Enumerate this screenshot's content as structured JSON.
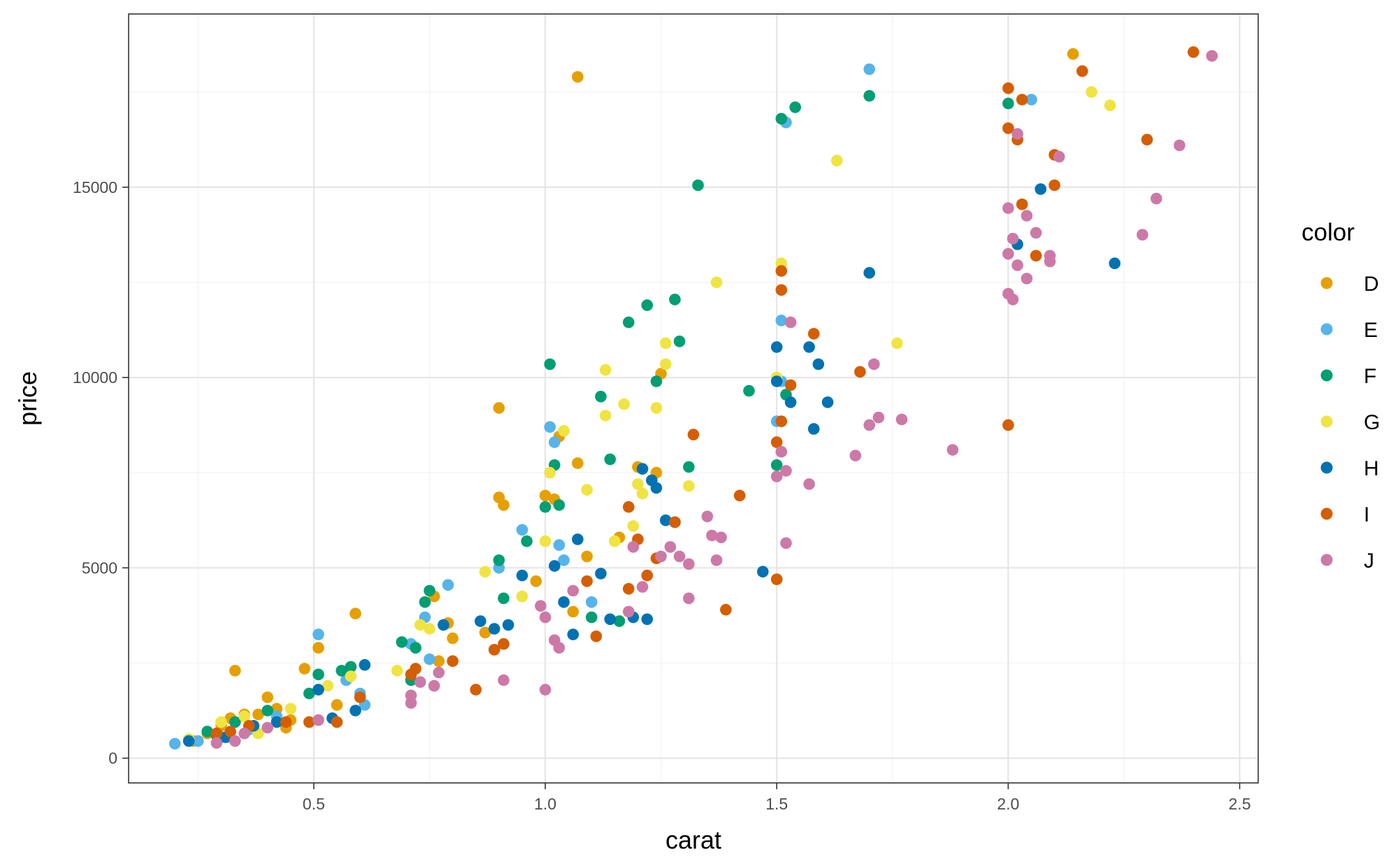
{
  "chart_data": {
    "type": "scatter",
    "title": "",
    "xlabel": "carat",
    "ylabel": "price",
    "xlim": [
      0.1,
      2.54
    ],
    "ylim": [
      -650,
      19550
    ],
    "x_ticks": [
      0.5,
      1.0,
      1.5,
      2.0,
      2.5
    ],
    "x_tick_labels": [
      "0.5",
      "1.0",
      "1.5",
      "2.0",
      "2.5"
    ],
    "y_ticks": [
      0,
      5000,
      10000,
      15000
    ],
    "y_tick_labels": [
      "0",
      "5000",
      "10000",
      "15000"
    ],
    "grid": true,
    "legend": {
      "title": "color",
      "position": "right"
    },
    "series": [
      {
        "name": "D",
        "color": "#E69F00",
        "points": [
          [
            1.07,
            17900
          ],
          [
            2.14,
            18500
          ],
          [
            0.9,
            9200
          ],
          [
            0.9,
            6850
          ],
          [
            0.91,
            6650
          ],
          [
            1.0,
            6900
          ],
          [
            1.02,
            6800
          ],
          [
            1.07,
            7750
          ],
          [
            1.03,
            8450
          ],
          [
            1.25,
            10100
          ],
          [
            1.24,
            7500
          ],
          [
            1.2,
            7650
          ],
          [
            1.16,
            5800
          ],
          [
            1.09,
            5300
          ],
          [
            1.06,
            3850
          ],
          [
            0.98,
            4650
          ],
          [
            0.76,
            4250
          ],
          [
            0.79,
            3550
          ],
          [
            0.77,
            2550
          ],
          [
            0.8,
            3150
          ],
          [
            0.87,
            3300
          ],
          [
            0.59,
            3800
          ],
          [
            0.48,
            2350
          ],
          [
            0.51,
            2900
          ],
          [
            0.33,
            2300
          ],
          [
            0.4,
            1600
          ],
          [
            0.42,
            1300
          ],
          [
            0.35,
            1150
          ],
          [
            0.3,
            850
          ],
          [
            0.32,
            1050
          ],
          [
            0.38,
            1150
          ],
          [
            0.45,
            1000
          ],
          [
            0.55,
            1400
          ],
          [
            0.44,
            800
          ],
          [
            0.27,
            650
          ],
          [
            0.24,
            450
          ]
        ]
      },
      {
        "name": "E",
        "color": "#56B4E9",
        "points": [
          [
            1.7,
            18100
          ],
          [
            2.05,
            17300
          ],
          [
            1.52,
            16700
          ],
          [
            1.51,
            11500
          ],
          [
            1.01,
            8700
          ],
          [
            1.02,
            8300
          ],
          [
            0.95,
            6000
          ],
          [
            0.9,
            5000
          ],
          [
            1.03,
            5600
          ],
          [
            1.04,
            5200
          ],
          [
            1.1,
            4100
          ],
          [
            0.79,
            4550
          ],
          [
            0.74,
            3700
          ],
          [
            0.71,
            3000
          ],
          [
            0.75,
            2600
          ],
          [
            0.51,
            3250
          ],
          [
            0.6,
            1700
          ],
          [
            0.57,
            2050
          ],
          [
            0.61,
            1400
          ],
          [
            0.42,
            1100
          ],
          [
            0.36,
            750
          ],
          [
            0.3,
            550
          ],
          [
            0.2,
            380
          ],
          [
            0.25,
            450
          ],
          [
            1.5,
            8850
          ],
          [
            1.51,
            9900
          ]
        ]
      },
      {
        "name": "F",
        "color": "#009E73",
        "points": [
          [
            1.7,
            17400
          ],
          [
            2.0,
            17200
          ],
          [
            1.51,
            16800
          ],
          [
            1.54,
            17100
          ],
          [
            1.33,
            15050
          ],
          [
            1.28,
            12050
          ],
          [
            1.22,
            11900
          ],
          [
            1.18,
            11450
          ],
          [
            1.29,
            10950
          ],
          [
            1.01,
            10350
          ],
          [
            1.12,
            9500
          ],
          [
            1.24,
            9900
          ],
          [
            1.44,
            9650
          ],
          [
            1.52,
            9550
          ],
          [
            1.14,
            7850
          ],
          [
            1.31,
            7650
          ],
          [
            1.02,
            7700
          ],
          [
            1.03,
            6650
          ],
          [
            1.0,
            6600
          ],
          [
            0.96,
            5700
          ],
          [
            0.9,
            5200
          ],
          [
            0.91,
            4200
          ],
          [
            0.75,
            4400
          ],
          [
            0.74,
            4100
          ],
          [
            0.69,
            3050
          ],
          [
            0.72,
            2900
          ],
          [
            0.71,
            2050
          ],
          [
            0.56,
            2300
          ],
          [
            0.58,
            2400
          ],
          [
            0.51,
            2200
          ],
          [
            0.49,
            1700
          ],
          [
            0.4,
            1250
          ],
          [
            0.33,
            950
          ],
          [
            0.27,
            700
          ],
          [
            0.29,
            600
          ],
          [
            1.1,
            3700
          ],
          [
            1.16,
            3600
          ],
          [
            1.5,
            7700
          ]
        ]
      },
      {
        "name": "G",
        "color": "#F0E442",
        "points": [
          [
            2.18,
            17500
          ],
          [
            2.22,
            17150
          ],
          [
            1.63,
            15700
          ],
          [
            1.51,
            13000
          ],
          [
            1.37,
            12500
          ],
          [
            1.26,
            10900
          ],
          [
            1.26,
            10350
          ],
          [
            1.13,
            10200
          ],
          [
            1.13,
            9000
          ],
          [
            1.17,
            9300
          ],
          [
            1.24,
            9200
          ],
          [
            1.5,
            10000
          ],
          [
            1.76,
            10900
          ],
          [
            1.04,
            8600
          ],
          [
            1.01,
            7500
          ],
          [
            1.09,
            7050
          ],
          [
            1.2,
            7200
          ],
          [
            1.31,
            7150
          ],
          [
            1.19,
            6100
          ],
          [
            1.15,
            5700
          ],
          [
            1.0,
            5700
          ],
          [
            0.87,
            4900
          ],
          [
            0.95,
            4250
          ],
          [
            0.75,
            3400
          ],
          [
            0.73,
            3500
          ],
          [
            0.68,
            2300
          ],
          [
            0.58,
            2150
          ],
          [
            0.53,
            1900
          ],
          [
            0.45,
            1300
          ],
          [
            0.35,
            1100
          ],
          [
            0.3,
            950
          ],
          [
            0.23,
            500
          ],
          [
            0.38,
            650
          ],
          [
            1.21,
            6950
          ]
        ]
      },
      {
        "name": "H",
        "color": "#0072B2",
        "points": [
          [
            2.07,
            14950
          ],
          [
            2.02,
            13500
          ],
          [
            2.23,
            13000
          ],
          [
            1.7,
            12750
          ],
          [
            1.5,
            10800
          ],
          [
            1.57,
            10800
          ],
          [
            1.59,
            10350
          ],
          [
            1.53,
            9350
          ],
          [
            1.5,
            9900
          ],
          [
            1.61,
            9350
          ],
          [
            1.58,
            8650
          ],
          [
            1.47,
            4900
          ],
          [
            1.21,
            7600
          ],
          [
            1.23,
            7300
          ],
          [
            1.24,
            7100
          ],
          [
            1.26,
            6250
          ],
          [
            1.28,
            6200
          ],
          [
            1.07,
            5750
          ],
          [
            1.02,
            5050
          ],
          [
            0.95,
            4800
          ],
          [
            1.12,
            4850
          ],
          [
            1.04,
            4100
          ],
          [
            1.14,
            3650
          ],
          [
            1.19,
            3700
          ],
          [
            1.22,
            3650
          ],
          [
            1.06,
            3250
          ],
          [
            0.92,
            3500
          ],
          [
            0.86,
            3600
          ],
          [
            0.89,
            3400
          ],
          [
            0.78,
            3500
          ],
          [
            0.61,
            2450
          ],
          [
            0.59,
            1250
          ],
          [
            0.51,
            1800
          ],
          [
            0.54,
            1050
          ],
          [
            0.42,
            950
          ],
          [
            0.37,
            850
          ],
          [
            0.31,
            550
          ],
          [
            0.23,
            450
          ]
        ]
      },
      {
        "name": "I",
        "color": "#D55E00",
        "points": [
          [
            2.4,
            18550
          ],
          [
            2.16,
            18050
          ],
          [
            2.0,
            17600
          ],
          [
            2.03,
            17300
          ],
          [
            2.0,
            16550
          ],
          [
            2.02,
            16250
          ],
          [
            2.3,
            16250
          ],
          [
            2.1,
            15850
          ],
          [
            2.1,
            15050
          ],
          [
            2.03,
            14550
          ],
          [
            2.06,
            13200
          ],
          [
            2.0,
            8750
          ],
          [
            1.68,
            10150
          ],
          [
            1.58,
            11150
          ],
          [
            1.51,
            12800
          ],
          [
            1.51,
            12300
          ],
          [
            1.53,
            9800
          ],
          [
            1.51,
            8850
          ],
          [
            1.5,
            8300
          ],
          [
            1.32,
            8500
          ],
          [
            1.42,
            6900
          ],
          [
            1.28,
            6200
          ],
          [
            1.18,
            6600
          ],
          [
            1.2,
            5750
          ],
          [
            1.24,
            5250
          ],
          [
            1.22,
            4800
          ],
          [
            1.18,
            4450
          ],
          [
            1.5,
            4700
          ],
          [
            1.39,
            3900
          ],
          [
            1.11,
            3200
          ],
          [
            0.91,
            3000
          ],
          [
            0.89,
            2850
          ],
          [
            0.85,
            1800
          ],
          [
            0.8,
            2550
          ],
          [
            0.72,
            2350
          ],
          [
            0.71,
            2200
          ],
          [
            0.6,
            1600
          ],
          [
            0.55,
            950
          ],
          [
            0.49,
            950
          ],
          [
            0.44,
            950
          ],
          [
            0.36,
            850
          ],
          [
            0.32,
            700
          ],
          [
            0.29,
            650
          ],
          [
            1.09,
            4650
          ]
        ]
      },
      {
        "name": "J",
        "color": "#CC79A7",
        "points": [
          [
            2.44,
            18450
          ],
          [
            2.37,
            16100
          ],
          [
            2.11,
            15800
          ],
          [
            2.02,
            16400
          ],
          [
            2.32,
            14700
          ],
          [
            2.0,
            14450
          ],
          [
            2.04,
            14250
          ],
          [
            2.29,
            13750
          ],
          [
            2.06,
            13800
          ],
          [
            2.01,
            13650
          ],
          [
            2.09,
            13200
          ],
          [
            2.09,
            13050
          ],
          [
            2.0,
            13250
          ],
          [
            2.02,
            12950
          ],
          [
            2.04,
            12600
          ],
          [
            2.0,
            12200
          ],
          [
            2.01,
            12050
          ],
          [
            1.71,
            10350
          ],
          [
            1.53,
            11450
          ],
          [
            1.72,
            8950
          ],
          [
            1.77,
            8900
          ],
          [
            1.7,
            8750
          ],
          [
            1.67,
            7950
          ],
          [
            1.88,
            8100
          ],
          [
            1.57,
            7200
          ],
          [
            1.52,
            7550
          ],
          [
            1.5,
            7400
          ],
          [
            1.51,
            8050
          ],
          [
            1.52,
            5650
          ],
          [
            1.35,
            6350
          ],
          [
            1.38,
            5800
          ],
          [
            1.37,
            5200
          ],
          [
            1.31,
            5100
          ],
          [
            1.29,
            5300
          ],
          [
            1.25,
            5300
          ],
          [
            1.31,
            4200
          ],
          [
            1.19,
            5550
          ],
          [
            1.21,
            4500
          ],
          [
            1.18,
            3850
          ],
          [
            1.0,
            3700
          ],
          [
            1.02,
            3100
          ],
          [
            1.03,
            2900
          ],
          [
            1.06,
            4400
          ],
          [
            0.99,
            4000
          ],
          [
            1.0,
            1800
          ],
          [
            0.91,
            2050
          ],
          [
            0.77,
            2250
          ],
          [
            0.76,
            1900
          ],
          [
            0.71,
            1650
          ],
          [
            0.71,
            1450
          ],
          [
            0.73,
            2000
          ],
          [
            0.51,
            1000
          ],
          [
            0.4,
            800
          ],
          [
            0.33,
            450
          ],
          [
            0.29,
            400
          ],
          [
            0.35,
            650
          ],
          [
            1.27,
            5550
          ],
          [
            1.36,
            5850
          ]
        ]
      }
    ]
  }
}
